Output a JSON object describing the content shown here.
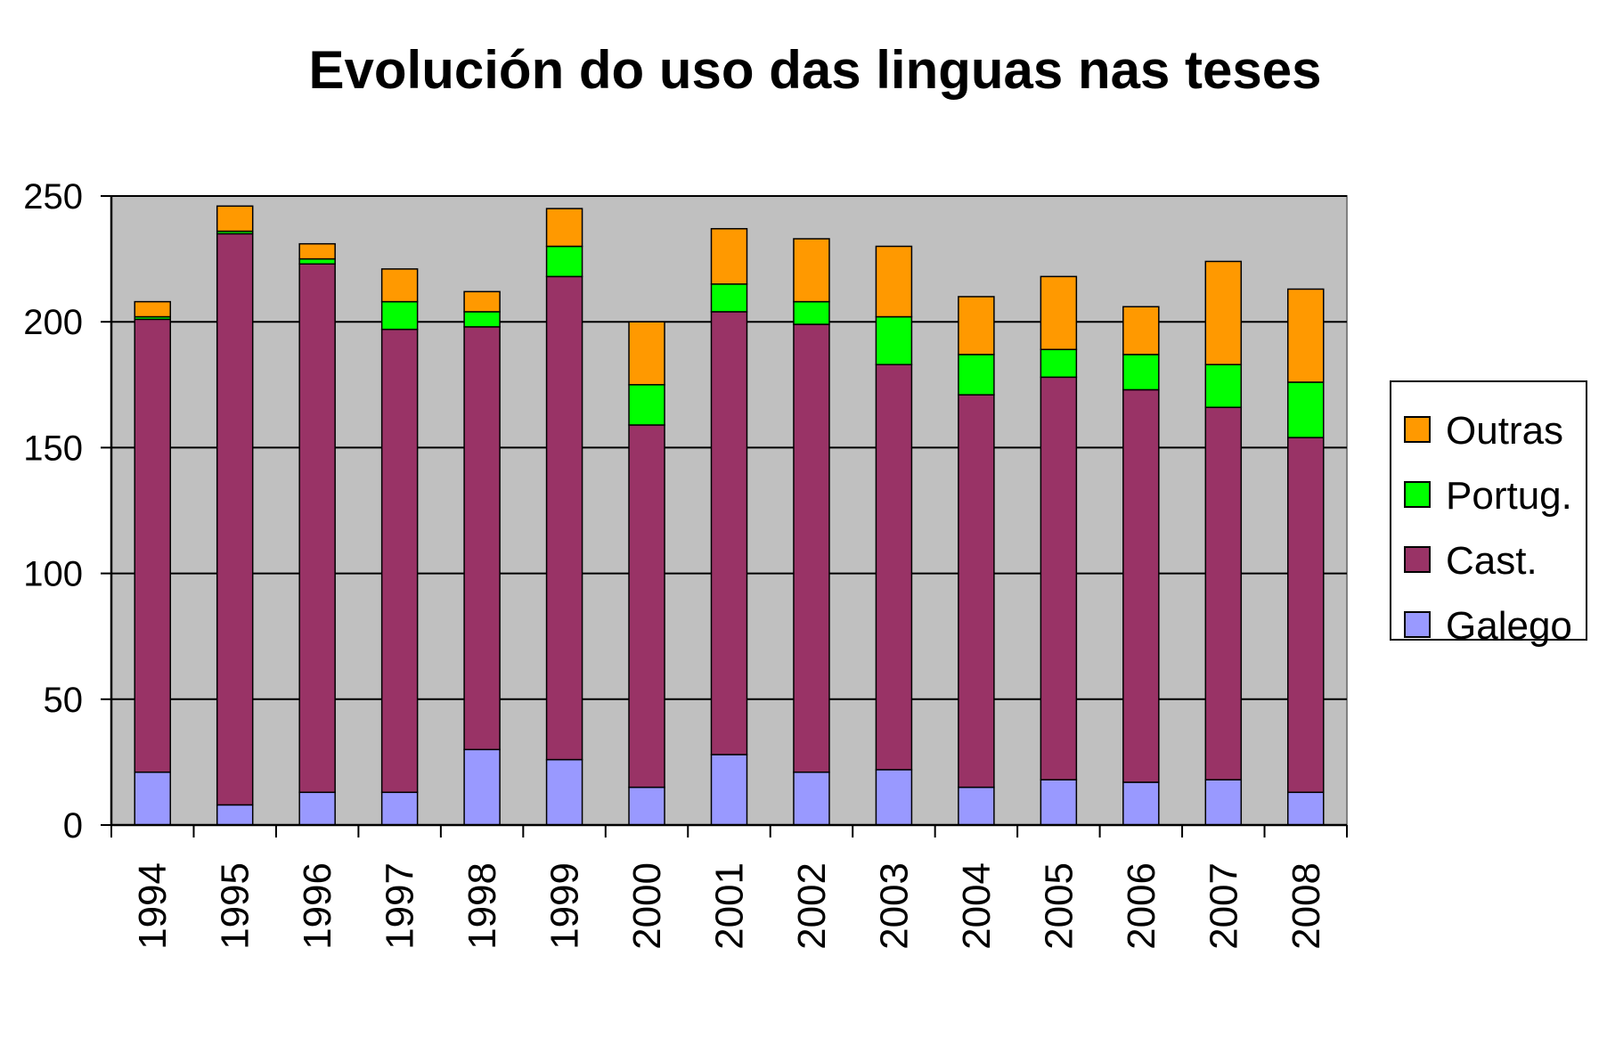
{
  "chart_data": {
    "type": "bar",
    "stacked": true,
    "title": "Evolución do uso das linguas nas teses",
    "xlabel": "",
    "ylabel": "",
    "ylim": [
      0,
      250
    ],
    "yticks": [
      "0",
      "50",
      "100",
      "150",
      "200",
      "250"
    ],
    "grid": true,
    "legend_position": "right",
    "categories": [
      "1994",
      "1995",
      "1996",
      "1997",
      "1998",
      "1999",
      "2000",
      "2001",
      "2002",
      "2003",
      "2004",
      "2005",
      "2006",
      "2007",
      "2008"
    ],
    "series": [
      {
        "name": "Galego",
        "color": "#9999ff",
        "values": [
          21,
          8,
          13,
          13,
          30,
          26,
          15,
          28,
          21,
          22,
          15,
          18,
          17,
          18,
          13
        ]
      },
      {
        "name": "Cast.",
        "color": "#993366",
        "values": [
          180,
          227,
          210,
          184,
          168,
          192,
          144,
          176,
          178,
          161,
          156,
          160,
          156,
          148,
          141
        ]
      },
      {
        "name": "Portug.",
        "color": "#00ff00",
        "values": [
          1,
          1,
          2,
          11,
          6,
          12,
          16,
          11,
          9,
          19,
          16,
          11,
          14,
          17,
          22
        ]
      },
      {
        "name": "Outras",
        "color": "#ff9900",
        "values": [
          6,
          10,
          6,
          13,
          8,
          15,
          25,
          22,
          25,
          28,
          23,
          29,
          19,
          41,
          37
        ]
      }
    ],
    "legend_order": [
      "Outras",
      "Portug.",
      "Cast.",
      "Galego"
    ],
    "plot_background": "#c0c0c0"
  }
}
